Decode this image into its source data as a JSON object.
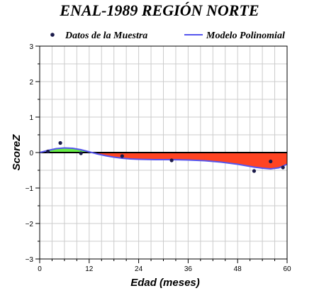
{
  "chart_data": {
    "type": "line",
    "title": "ENAL-1989 REGIÓN NORTE",
    "xlabel": "Edad (meses)",
    "ylabel": "ScoreZ",
    "xlim": [
      0,
      60
    ],
    "ylim": [
      -3,
      3
    ],
    "x_ticks": [
      0,
      12,
      24,
      36,
      48,
      60
    ],
    "y_ticks": [
      -3,
      -2,
      -1,
      0,
      1,
      2,
      3
    ],
    "x_tick_labels": [
      "0",
      "12",
      "24",
      "36",
      "48",
      "60"
    ],
    "y_tick_labels": [
      "−3",
      "−2",
      "−1",
      "0",
      "1",
      "2",
      "3"
    ],
    "grid": true,
    "legend_position": "top",
    "series": [
      {
        "name": "Datos de la Muestra",
        "kind": "scatter",
        "color": "#1a1a4a",
        "x": [
          2,
          5,
          10,
          20,
          32,
          52,
          56,
          59
        ],
        "y": [
          0.03,
          0.27,
          -0.02,
          -0.1,
          -0.22,
          -0.52,
          -0.25,
          -0.42
        ]
      },
      {
        "name": "Modelo Polinomial",
        "kind": "line",
        "color": "#5555ee",
        "x": [
          0,
          2,
          4,
          6,
          8,
          10,
          12,
          14,
          16,
          18,
          20,
          22,
          24,
          28,
          32,
          36,
          40,
          44,
          48,
          52,
          54,
          56,
          58,
          60
        ],
        "y": [
          0.0,
          0.06,
          0.11,
          0.13,
          0.12,
          0.08,
          0.02,
          -0.04,
          -0.09,
          -0.13,
          -0.16,
          -0.18,
          -0.19,
          -0.2,
          -0.2,
          -0.21,
          -0.23,
          -0.27,
          -0.33,
          -0.41,
          -0.44,
          -0.46,
          -0.43,
          -0.33
        ]
      }
    ],
    "fill_positive_color": "#66ee44",
    "fill_negative_color": "#ff4422"
  }
}
